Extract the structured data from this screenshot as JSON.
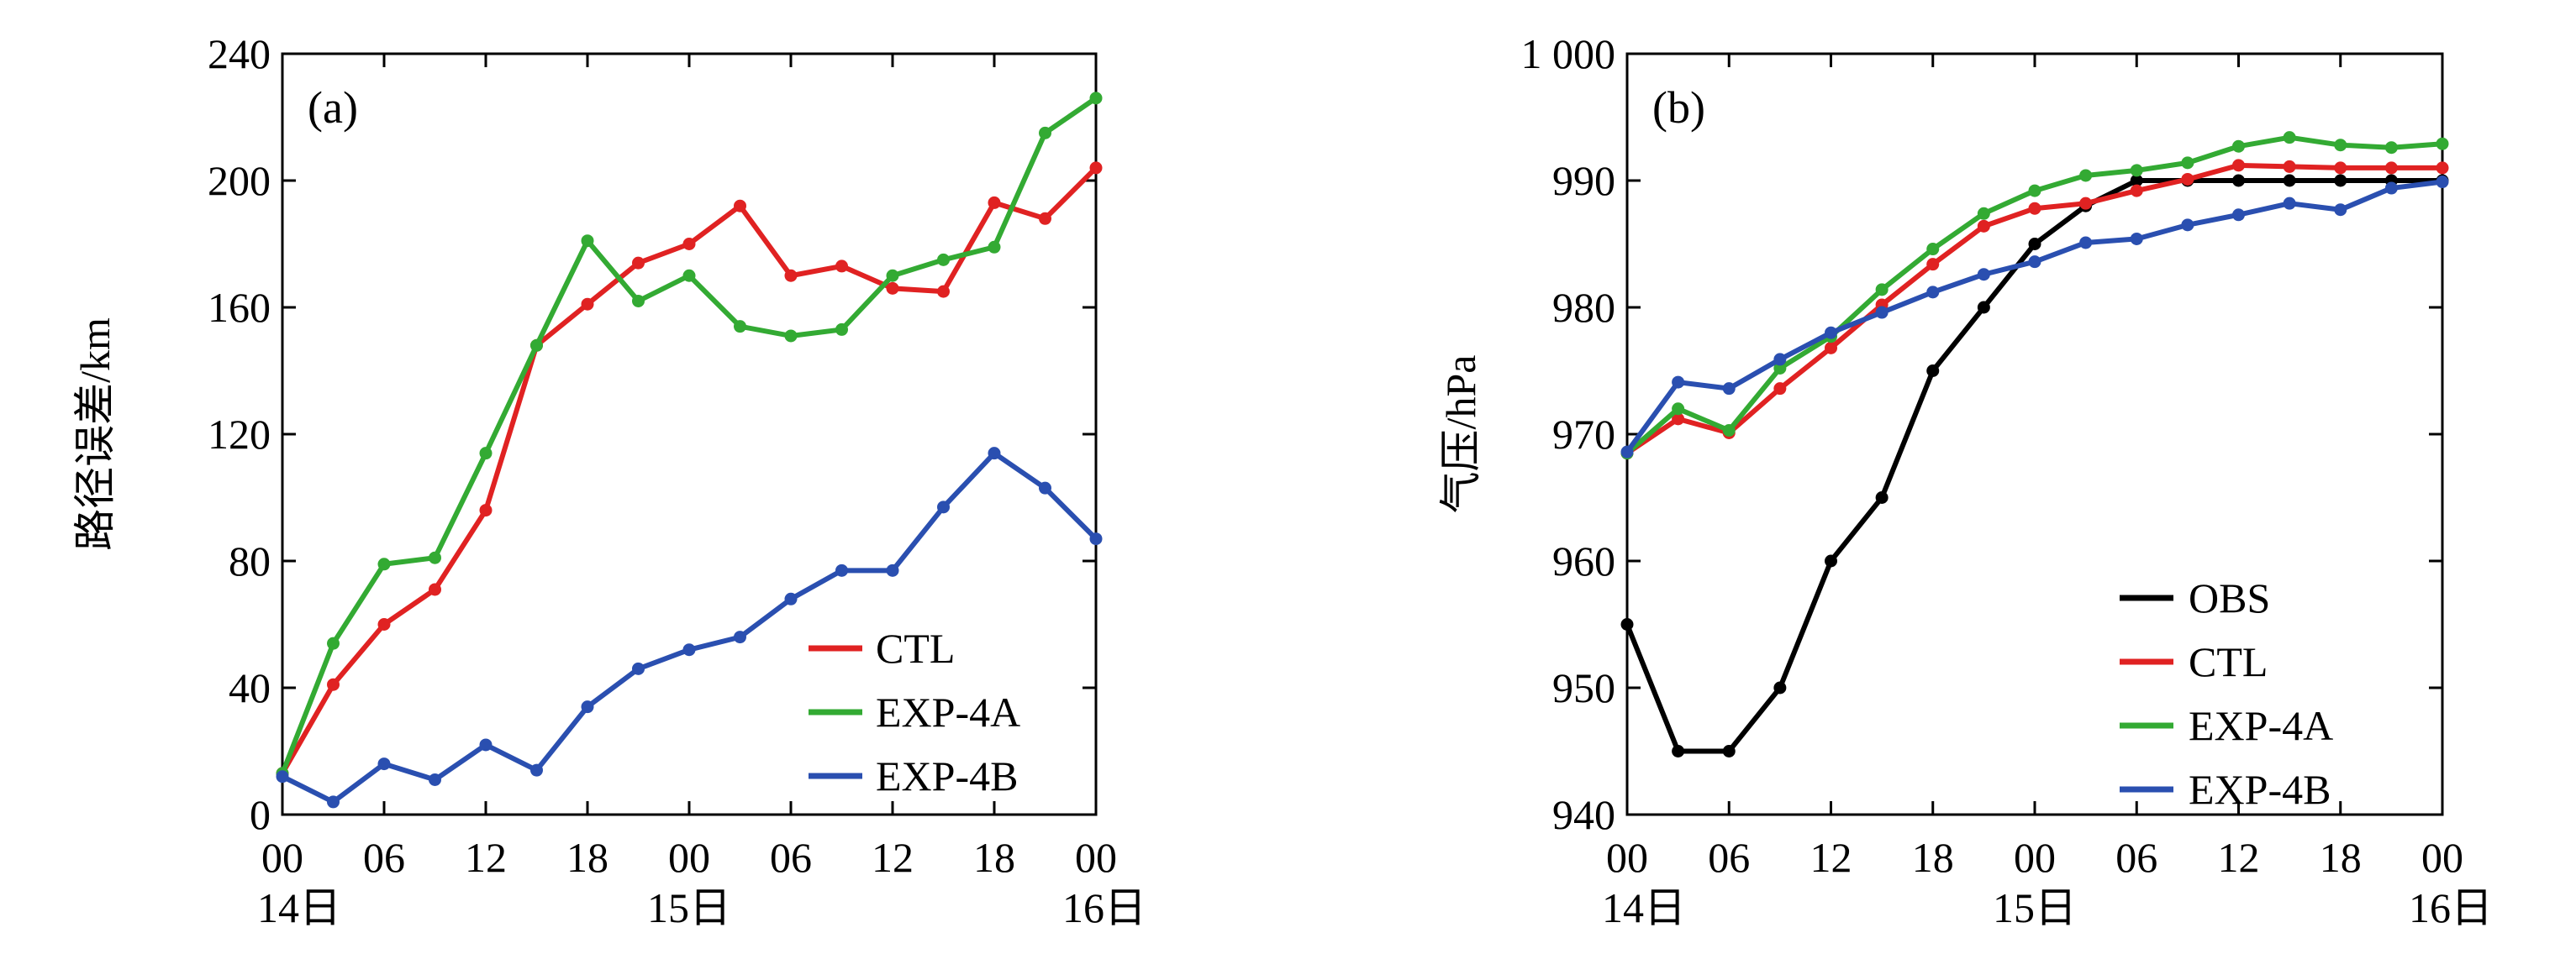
{
  "colors": {
    "OBS": "#000000",
    "CTL": "#e02222",
    "EXP-4A": "#33aa33",
    "EXP-4B": "#2a4fb0"
  },
  "chart_data": [
    {
      "type": "line",
      "panel_label": "(a)",
      "ylabel": "路径误差/km",
      "ylim": [
        0,
        240
      ],
      "yticks": [
        "0",
        "40",
        "80",
        "120",
        "160",
        "200",
        "240"
      ],
      "xlim": [
        0,
        48
      ],
      "xticks": [
        "00",
        "06",
        "12",
        "18",
        "00",
        "06",
        "12",
        "18",
        "00"
      ],
      "day_labels": [
        "14日",
        "15日",
        "16日"
      ],
      "legend_position": "bottom-right",
      "x": [
        0,
        3,
        6,
        9,
        12,
        15,
        18,
        21,
        24,
        27,
        30,
        33,
        36,
        39,
        42,
        45,
        48
      ],
      "series": [
        {
          "name": "CTL",
          "values": [
            13,
            41,
            60,
            71,
            96,
            148,
            161,
            174,
            180,
            192,
            170,
            173,
            166,
            165,
            193,
            188,
            204
          ]
        },
        {
          "name": "EXP-4A",
          "values": [
            13,
            54,
            79,
            81,
            114,
            148,
            181,
            162,
            170,
            154,
            151,
            153,
            170,
            175,
            179,
            215,
            226
          ]
        },
        {
          "name": "EXP-4B",
          "values": [
            12,
            4,
            16,
            11,
            22,
            14,
            34,
            46,
            52,
            56,
            68,
            77,
            77,
            97,
            114,
            103,
            87
          ]
        }
      ]
    },
    {
      "type": "line",
      "panel_label": "(b)",
      "ylabel": "气压/hPa",
      "ylim": [
        940,
        1000
      ],
      "yticks": [
        "940",
        "950",
        "960",
        "970",
        "980",
        "990",
        "1 000"
      ],
      "xlim": [
        0,
        48
      ],
      "xticks": [
        "00",
        "06",
        "12",
        "18",
        "00",
        "06",
        "12",
        "18",
        "00"
      ],
      "day_labels": [
        "14日",
        "15日",
        "16日"
      ],
      "legend_position": "bottom-right",
      "x": [
        0,
        3,
        6,
        9,
        12,
        15,
        18,
        21,
        24,
        27,
        30,
        33,
        36,
        39,
        42,
        45,
        48
      ],
      "series": [
        {
          "name": "OBS",
          "values": [
            955,
            945,
            945,
            950,
            960,
            965,
            975,
            980,
            985,
            988,
            990,
            990,
            990,
            990,
            990,
            990,
            990
          ]
        },
        {
          "name": "CTL",
          "values": [
            968.5,
            971.2,
            970.1,
            973.6,
            976.8,
            980.2,
            983.4,
            986.4,
            987.8,
            988.2,
            989.2,
            990.1,
            991.2,
            991.1,
            991.0,
            991.0,
            991.0
          ]
        },
        {
          "name": "EXP-4A",
          "values": [
            968.5,
            972.0,
            970.3,
            975.2,
            977.7,
            981.4,
            984.6,
            987.4,
            989.2,
            990.4,
            990.8,
            991.4,
            992.7,
            993.4,
            992.8,
            992.6,
            992.9
          ]
        },
        {
          "name": "EXP-4B",
          "values": [
            968.6,
            974.1,
            973.6,
            975.9,
            978.0,
            979.6,
            981.2,
            982.6,
            983.6,
            985.1,
            985.4,
            986.5,
            987.3,
            988.2,
            987.7,
            989.4,
            989.9
          ]
        }
      ]
    }
  ]
}
